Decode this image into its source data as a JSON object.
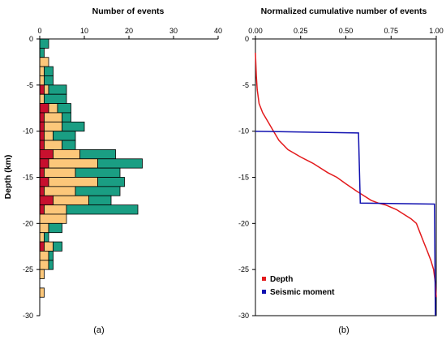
{
  "chart_data": [
    {
      "type": "bar",
      "orientation": "horizontal",
      "stacked": true,
      "title": "",
      "xlabel": "Number of events",
      "ylabel": "Depth (km)",
      "xlim": [
        0,
        40
      ],
      "ylim": [
        -30,
        0
      ],
      "xticks": [
        0,
        10,
        20,
        30,
        40
      ],
      "yticks": [
        0,
        -5,
        -10,
        -15,
        -20,
        -25,
        -30
      ],
      "x_axis_position": "top",
      "bin_width_km": 1,
      "bins": [
        0,
        -1,
        -2,
        -3,
        -4,
        -5,
        -6,
        -7,
        -8,
        -9,
        -10,
        -11,
        -12,
        -13,
        -14,
        -15,
        -16,
        -17,
        -18,
        -19,
        -20,
        -21,
        -22,
        -23,
        -24,
        -25,
        -26,
        -27,
        -28,
        -29
      ],
      "series": [
        {
          "color": "#c8102e",
          "values": [
            0,
            0,
            0,
            0,
            0,
            1,
            0,
            2,
            1,
            1,
            1,
            1,
            3,
            2,
            1,
            2,
            1,
            3,
            1,
            0,
            0,
            0,
            1,
            0,
            0,
            0,
            0,
            0,
            0,
            0
          ]
        },
        {
          "color": "#fcc77a",
          "values": [
            0,
            0,
            2,
            1,
            1,
            1,
            1,
            2,
            4,
            4,
            2,
            4,
            6,
            11,
            7,
            11,
            7,
            8,
            5,
            6,
            2,
            1,
            2,
            2,
            2,
            1,
            0,
            1,
            0,
            0
          ]
        },
        {
          "color": "#1a9e83",
          "values": [
            2,
            1,
            0,
            2,
            2,
            4,
            5,
            3,
            2,
            5,
            5,
            3,
            8,
            10,
            10,
            6,
            10,
            5,
            16,
            0,
            3,
            1,
            2,
            1,
            1,
            0,
            0,
            0,
            0,
            0
          ]
        }
      ],
      "panel_label": "(a)"
    },
    {
      "type": "line",
      "title": "Normalized cumulative number of events",
      "xlabel": "",
      "ylabel": "",
      "xlim": [
        0,
        1
      ],
      "ylim": [
        -30,
        0
      ],
      "xticks": [
        0.0,
        0.25,
        0.5,
        0.75,
        1.0
      ],
      "xtick_labels": [
        "0.00",
        "0.25",
        "0.50",
        "0.75",
        "1.00"
      ],
      "yticks": [
        0,
        -5,
        -10,
        -15,
        -20,
        -25,
        -30
      ],
      "x_axis_position": "top",
      "legend": "bottom-left",
      "series": [
        {
          "name": "Depth",
          "color": "#e31a1c",
          "points": [
            [
              0.0,
              -1.5
            ],
            [
              0.005,
              -4.0
            ],
            [
              0.01,
              -5.5
            ],
            [
              0.02,
              -7.0
            ],
            [
              0.04,
              -8.0
            ],
            [
              0.07,
              -9.0
            ],
            [
              0.1,
              -10.0
            ],
            [
              0.13,
              -11.0
            ],
            [
              0.18,
              -12.0
            ],
            [
              0.25,
              -12.8
            ],
            [
              0.32,
              -13.5
            ],
            [
              0.4,
              -14.5
            ],
            [
              0.45,
              -15.0
            ],
            [
              0.5,
              -15.7
            ],
            [
              0.56,
              -16.5
            ],
            [
              0.6,
              -17.0
            ],
            [
              0.64,
              -17.5
            ],
            [
              0.68,
              -17.8
            ],
            [
              0.72,
              -18.0
            ],
            [
              0.78,
              -18.5
            ],
            [
              0.82,
              -19.0
            ],
            [
              0.86,
              -19.5
            ],
            [
              0.89,
              -20.0
            ],
            [
              0.91,
              -21.0
            ],
            [
              0.93,
              -22.0
            ],
            [
              0.95,
              -23.0
            ],
            [
              0.97,
              -24.0
            ],
            [
              0.985,
              -25.0
            ],
            [
              0.995,
              -26.5
            ],
            [
              1.0,
              -28.0
            ]
          ]
        },
        {
          "name": "Seismic moment",
          "color": "#1010b0",
          "points": [
            [
              0.0,
              -10.0
            ],
            [
              0.57,
              -10.2
            ],
            [
              0.58,
              -17.8
            ],
            [
              0.99,
              -17.9
            ],
            [
              0.995,
              -30.0
            ]
          ]
        }
      ],
      "panel_label": "(b)"
    }
  ]
}
